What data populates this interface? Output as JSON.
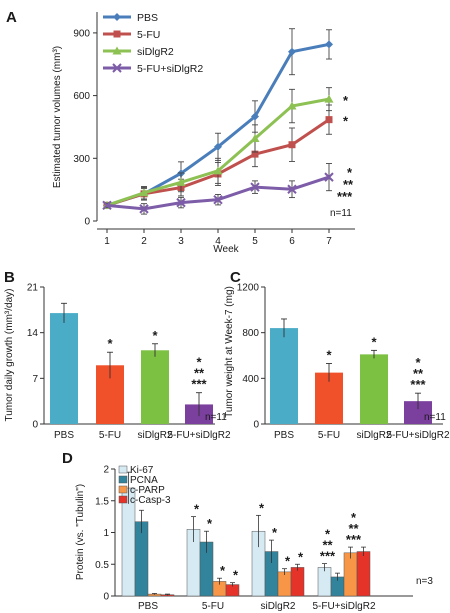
{
  "chart_data": [
    {
      "panel": "A",
      "type": "line",
      "ylabel": "Estimated tumor volumes (mm³)",
      "xlabel": "Week",
      "x": [
        1,
        2,
        3,
        4,
        5,
        6,
        7
      ],
      "ylim": [
        0,
        1000
      ],
      "yticks": [
        "0",
        "300",
        "600",
        "900"
      ],
      "xticks": [
        "1",
        "2",
        "3",
        "4",
        "5",
        "6",
        "7"
      ],
      "legend_position": "top-left",
      "note": "n=11",
      "series": [
        {
          "name": "PBS",
          "color": "#4a7ebb",
          "marker": "diamond",
          "values": [
            75,
            130,
            228,
            355,
            500,
            810,
            845
          ],
          "errors": [
            10,
            30,
            55,
            65,
            75,
            110,
            70
          ]
        },
        {
          "name": "5-FU",
          "color": "#c0504d",
          "marker": "square",
          "values": [
            75,
            130,
            160,
            225,
            320,
            365,
            485
          ],
          "errors": [
            10,
            25,
            40,
            55,
            60,
            80,
            70
          ]
        },
        {
          "name": "siDlgR2",
          "color": "#8dc153",
          "marker": "triangle",
          "values": [
            75,
            135,
            185,
            240,
            395,
            550,
            583
          ],
          "errors": [
            10,
            30,
            45,
            60,
            65,
            80,
            55
          ]
        },
        {
          "name": "5-FU+siDlgR2",
          "color": "#7d5ca8",
          "marker": "x",
          "values": [
            75,
            58,
            88,
            102,
            162,
            152,
            210
          ],
          "errors": [
            10,
            25,
            25,
            25,
            30,
            40,
            65
          ]
        }
      ],
      "annotations": [
        {
          "series": "siDlgR2",
          "label": "*"
        },
        {
          "series": "5-FU",
          "label": "*"
        },
        {
          "series": "5-FU+siDlgR2",
          "label": "*"
        },
        {
          "series": "5-FU+siDlgR2",
          "label": "**"
        },
        {
          "series": "5-FU+siDlgR2",
          "label": "***"
        }
      ]
    },
    {
      "panel": "B",
      "type": "bar",
      "ylabel": "Tumor daily growth (mm³/day)",
      "categories": [
        "PBS",
        "5-FU",
        "siDlgR2",
        "5-FU+siDlgR2"
      ],
      "values": [
        17,
        9,
        11.3,
        3
      ],
      "errors": [
        1.5,
        2,
        1,
        1.8
      ],
      "colors": [
        "#4aacc6",
        "#f0502a",
        "#7dc142",
        "#7b3f9e"
      ],
      "ylim": [
        0,
        21
      ],
      "yticks": [
        "0",
        "7",
        "14",
        "21"
      ],
      "stars": [
        [],
        [
          "*"
        ],
        [
          "*"
        ],
        [
          "*",
          "**",
          "***"
        ]
      ],
      "note": "n=11"
    },
    {
      "panel": "C",
      "type": "bar",
      "ylabel": "Tumor weight at Week-7 (mg)",
      "categories": [
        "PBS",
        "5-FU",
        "siDlgR2",
        "5-FU+siDlgR2"
      ],
      "values": [
        840,
        450,
        610,
        200
      ],
      "errors": [
        80,
        80,
        35,
        70
      ],
      "colors": [
        "#4aacc6",
        "#f0502a",
        "#7dc142",
        "#7b3f9e"
      ],
      "ylim": [
        0,
        1200
      ],
      "yticks": [
        "0",
        "400",
        "800",
        "1200"
      ],
      "stars": [
        [],
        [
          "*"
        ],
        [
          "*"
        ],
        [
          "*",
          "**",
          "***"
        ]
      ],
      "note": "n=11"
    },
    {
      "panel": "D",
      "type": "bar",
      "ylabel": "Protein (vs. \"Tubulin\")",
      "categories": [
        "PBS",
        "5-FU",
        "siDlgR2",
        "5-FU+siDlgR2"
      ],
      "ylim": [
        0,
        2
      ],
      "yticks": [
        "0",
        "0.5",
        "1",
        "1.5",
        "2"
      ],
      "legend_position": "top-left",
      "note": "n=3",
      "series": [
        {
          "name": "Ki-67",
          "color": "#d6eaf4",
          "values": [
            1.7,
            1.05,
            1.02,
            0.45
          ],
          "errors": [
            0.25,
            0.2,
            0.25,
            0.06
          ]
        },
        {
          "name": "PCNA",
          "color": "#31849b",
          "values": [
            1.17,
            0.85,
            0.7,
            0.3
          ],
          "errors": [
            0.18,
            0.17,
            0.18,
            0.06
          ]
        },
        {
          "name": "c-PARP",
          "color": "#f79646",
          "values": [
            0.03,
            0.23,
            0.38,
            0.68
          ],
          "errors": [
            0.01,
            0.05,
            0.05,
            0.09
          ]
        },
        {
          "name": "c-Casp-3",
          "color": "#e5332a",
          "values": [
            0.02,
            0.18,
            0.45,
            0.7
          ],
          "errors": [
            0.01,
            0.03,
            0.05,
            0.07
          ]
        }
      ],
      "stars": [
        [
          [],
          [],
          [],
          []
        ],
        [
          [
            "*"
          ],
          [
            "*"
          ],
          [
            "*"
          ],
          [
            "*"
          ]
        ],
        [
          [
            "*"
          ],
          [
            "*"
          ],
          [
            "*"
          ],
          [
            "*"
          ]
        ],
        [
          [
            "*",
            "**",
            "***"
          ],
          [],
          [
            "*",
            "**",
            "***"
          ],
          []
        ]
      ]
    }
  ]
}
